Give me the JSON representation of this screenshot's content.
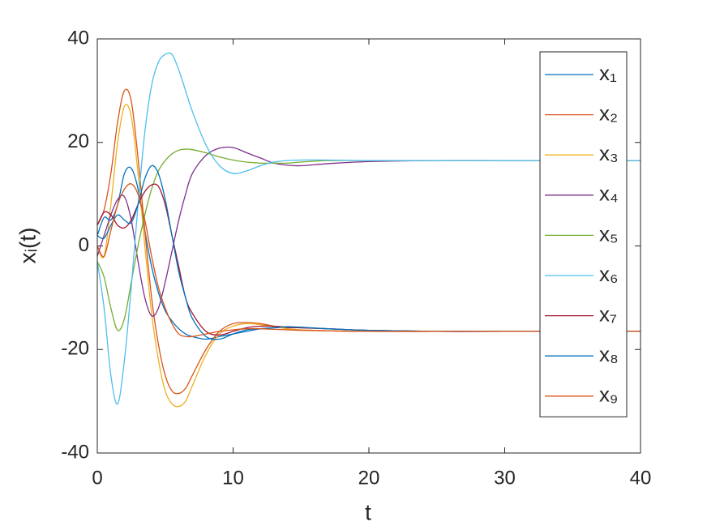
{
  "chart_data": {
    "type": "line",
    "xlabel": "t",
    "ylabel": "xᵢ(t)",
    "x": [
      0,
      0.5,
      1,
      1.5,
      2,
      2.5,
      3,
      3.5,
      4,
      4.5,
      5,
      5.5,
      6,
      6.5,
      7,
      8,
      9,
      10,
      11,
      12,
      13,
      14,
      15,
      17,
      20,
      25,
      30,
      40
    ],
    "xlim": [
      0,
      40
    ],
    "xticks": [
      0,
      10,
      20,
      30,
      40
    ],
    "ylim": [
      -40,
      40
    ],
    "yticks": [
      -40,
      -20,
      0,
      20,
      40
    ],
    "grid": false,
    "legend": "northeast",
    "series": [
      {
        "name": "x₁",
        "color": "#0072BD",
        "values": [
          2,
          5.5,
          5,
          8,
          14,
          15,
          11,
          3,
          -4,
          -9,
          -12.5,
          -14.5,
          -16,
          -17,
          -17.5,
          -18,
          -17.5,
          -17,
          -16.5,
          -16,
          -15.8,
          -15.8,
          -15.8,
          -16,
          -16.3,
          -16.5,
          -16.5,
          -16.5
        ]
      },
      {
        "name": "x₂",
        "color": "#D95319",
        "values": [
          4,
          7,
          14,
          24,
          30,
          28,
          17,
          3,
          -10,
          -19,
          -25,
          -28,
          -28.5,
          -27.5,
          -25,
          -20,
          -16.5,
          -15,
          -14.8,
          -15,
          -15.5,
          -16,
          -16.2,
          -16.4,
          -16.5,
          -16.5,
          -16.5,
          -16.5
        ]
      },
      {
        "name": "x₃",
        "color": "#EDB120",
        "values": [
          0,
          -2,
          8,
          20,
          27,
          25,
          14,
          0,
          -13,
          -22,
          -28,
          -30.5,
          -31,
          -30,
          -27,
          -21,
          -17,
          -15.5,
          -15,
          -15.2,
          -15.6,
          -16,
          -16.2,
          -16.4,
          -16.5,
          -16.5,
          -16.5,
          -16.5
        ]
      },
      {
        "name": "x₄",
        "color": "#7E2F8E",
        "values": [
          -2,
          2,
          6,
          9,
          9.5,
          5,
          -3,
          -10,
          -13.5,
          -12,
          -7,
          -1,
          5,
          10,
          14,
          17.5,
          18.9,
          19,
          18,
          17,
          16,
          15.6,
          15.5,
          15.9,
          16.3,
          16.5,
          16.5,
          16.5
        ]
      },
      {
        "name": "x₅",
        "color": "#77AC30",
        "values": [
          -3,
          -6,
          -12,
          -16.3,
          -14,
          -7,
          0,
          6,
          11,
          14.5,
          16.5,
          17.8,
          18.5,
          18.7,
          18.6,
          18,
          17.2,
          16.6,
          16.2,
          16,
          16,
          16,
          16.2,
          16.5,
          16.5,
          16.5,
          16.5,
          16.5
        ]
      },
      {
        "name": "x₆",
        "color": "#4DBEEE",
        "values": [
          -3,
          -12,
          -25,
          -30.5,
          -22,
          -8,
          8,
          22,
          31,
          35.5,
          37,
          37,
          34,
          30,
          26,
          19.5,
          15.5,
          14,
          14.5,
          15.5,
          16.2,
          16.5,
          16.6,
          16.6,
          16.5,
          16.5,
          16.5,
          16.5
        ]
      },
      {
        "name": "x₇",
        "color": "#A2142F",
        "values": [
          4,
          6.5,
          6,
          4,
          3.5,
          5,
          8,
          10.5,
          11.8,
          11.5,
          8,
          2,
          -4,
          -10,
          -13,
          -16.5,
          -17.2,
          -16.5,
          -15.8,
          -15.5,
          -15.5,
          -15.7,
          -15.8,
          -16,
          -16.3,
          -16.5,
          -16.5,
          -16.5
        ]
      },
      {
        "name": "x₈",
        "color": "#0072BD",
        "values": [
          2,
          1.5,
          4,
          6,
          5,
          4.5,
          8,
          13,
          15.5,
          14,
          9,
          2,
          -5,
          -10,
          -14,
          -17.5,
          -18,
          -17,
          -16.2,
          -16,
          -15.8,
          -15.6,
          -15.7,
          -16,
          -16.3,
          -16.5,
          -16.5,
          -16.5
        ]
      },
      {
        "name": "x₉",
        "color": "#D95319",
        "values": [
          0,
          -2,
          3,
          8,
          11,
          12,
          10,
          5,
          -2,
          -8,
          -12,
          -15,
          -17,
          -17.5,
          -17.5,
          -17,
          -16.5,
          -16.2,
          -16,
          -16,
          -16.1,
          -16.2,
          -16.3,
          -16.4,
          -16.5,
          -16.5,
          -16.5,
          -16.5
        ]
      }
    ]
  }
}
